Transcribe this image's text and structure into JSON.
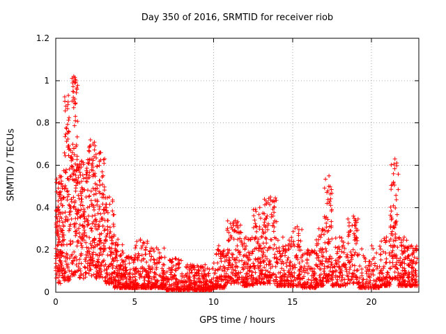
{
  "chart_data": {
    "type": "scatter",
    "title": "Day 350 of 2016, SRMTID for receiver riob",
    "xlabel": "GPS time / hours",
    "ylabel": "SRMTID / TECUs",
    "xlim": [
      0,
      23
    ],
    "ylim": [
      0,
      1.2
    ],
    "xticks": [
      0,
      5,
      10,
      15,
      20
    ],
    "yticks": [
      0,
      0.2,
      0.4,
      0.6,
      0.8,
      1,
      1.2
    ],
    "grid": true,
    "legend": "none",
    "marker": "plus",
    "marker_color": "#ff0000",
    "background": "#ffffff",
    "series_name": "SRMTID",
    "density_profile_fields": [
      "x_start_hours",
      "x_end_hours",
      "num_points",
      "y_min_tecus",
      "y_max_tecus",
      "concentration_exponent"
    ],
    "density_profile": [
      [
        0.0,
        0.5,
        130,
        0.04,
        0.55,
        1.1
      ],
      [
        0.5,
        1.0,
        110,
        0.05,
        0.93,
        1.5
      ],
      [
        1.0,
        1.4,
        110,
        0.08,
        1.02,
        1.4
      ],
      [
        1.4,
        2.0,
        120,
        0.06,
        0.62,
        1.2
      ],
      [
        2.0,
        2.5,
        110,
        0.07,
        0.72,
        1.4
      ],
      [
        2.5,
        3.1,
        120,
        0.06,
        0.66,
        1.3
      ],
      [
        3.1,
        3.7,
        100,
        0.04,
        0.45,
        1.5
      ],
      [
        3.7,
        4.3,
        90,
        0.02,
        0.25,
        2.0
      ],
      [
        4.3,
        5.0,
        100,
        0.02,
        0.17,
        2.2
      ],
      [
        5.0,
        6.0,
        130,
        0.02,
        0.25,
        2.5
      ],
      [
        6.0,
        7.0,
        130,
        0.02,
        0.21,
        2.5
      ],
      [
        7.0,
        8.0,
        120,
        0.01,
        0.16,
        2.5
      ],
      [
        8.0,
        9.0,
        120,
        0.01,
        0.13,
        2.5
      ],
      [
        9.0,
        10.0,
        120,
        0.01,
        0.13,
        2.5
      ],
      [
        10.0,
        10.8,
        100,
        0.02,
        0.22,
        2.3
      ],
      [
        10.8,
        11.8,
        120,
        0.04,
        0.34,
        1.8
      ],
      [
        11.8,
        12.5,
        100,
        0.03,
        0.26,
        2.0
      ],
      [
        12.5,
        13.2,
        100,
        0.04,
        0.4,
        1.8
      ],
      [
        13.2,
        14.0,
        110,
        0.04,
        0.45,
        1.8
      ],
      [
        14.0,
        15.0,
        120,
        0.03,
        0.26,
        2.2
      ],
      [
        15.0,
        15.6,
        70,
        0.03,
        0.31,
        2.0
      ],
      [
        15.6,
        16.5,
        100,
        0.02,
        0.2,
        2.4
      ],
      [
        16.5,
        17.0,
        70,
        0.03,
        0.3,
        2.0
      ],
      [
        17.0,
        17.5,
        80,
        0.05,
        0.55,
        1.6
      ],
      [
        17.5,
        18.5,
        100,
        0.03,
        0.26,
        2.2
      ],
      [
        18.5,
        19.2,
        80,
        0.04,
        0.36,
        1.9
      ],
      [
        19.2,
        20.5,
        110,
        0.02,
        0.22,
        2.4
      ],
      [
        20.5,
        21.2,
        80,
        0.03,
        0.26,
        2.2
      ],
      [
        21.2,
        21.7,
        80,
        0.06,
        0.63,
        1.5
      ],
      [
        21.7,
        22.3,
        90,
        0.03,
        0.26,
        2.2
      ],
      [
        22.3,
        22.9,
        90,
        0.03,
        0.22,
        2.2
      ]
    ]
  }
}
